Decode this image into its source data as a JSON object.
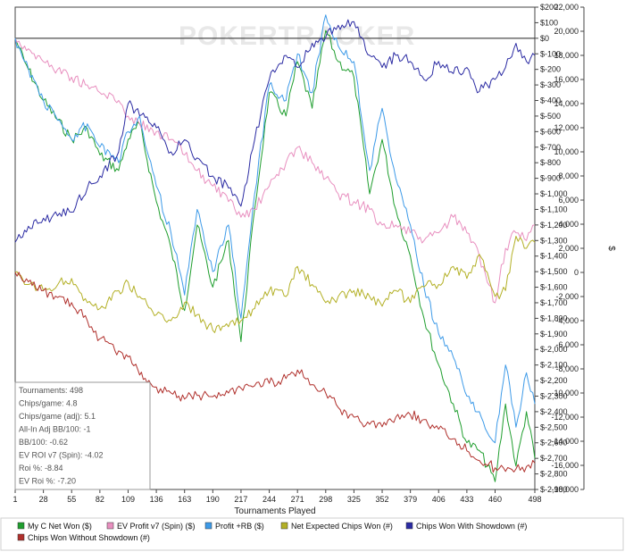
{
  "watermark": "POKERTRACKER",
  "chart_data": {
    "type": "line",
    "xlabel": "Tournaments Played",
    "ylabel_right": "$",
    "x_ticks": [
      1,
      28,
      55,
      82,
      109,
      136,
      163,
      190,
      217,
      244,
      271,
      298,
      325,
      352,
      379,
      406,
      433,
      460,
      498
    ],
    "x_range": [
      1,
      498
    ],
    "y_left": {
      "range": [
        -2900,
        200
      ],
      "ticks": [
        200,
        100,
        0,
        -100,
        -200,
        -300,
        -400,
        -500,
        -600,
        -700,
        -800,
        -900,
        -1000,
        -1100,
        -1200,
        -1300,
        -1400,
        -1500,
        -1600,
        -1700,
        -1800,
        -1900,
        -2000,
        -2100,
        -2200,
        -2300,
        -2400,
        -2500,
        -2600,
        -2700,
        -2800,
        -2900
      ],
      "tick_labels": [
        "$200",
        "$100",
        "$0",
        "$-100",
        "$-200",
        "$-300",
        "$-400",
        "$-500",
        "$-600",
        "$-700",
        "$-800",
        "$-900",
        "$-1,000",
        "$-1,100",
        "$-1,200",
        "$-1,300",
        "$-1,400",
        "$-1,500",
        "$-1,600",
        "$-1,700",
        "$-1,800",
        "$-1,900",
        "$-2,000",
        "$-2,100",
        "$-2,200",
        "$-2,300",
        "$-2,400",
        "$-2,500",
        "$-2,600",
        "$-2,700",
        "$-2,800",
        "$-2,900"
      ]
    },
    "y_right": {
      "range": [
        -18000,
        22000
      ],
      "ticks": [
        22000,
        20000,
        18000,
        16000,
        14000,
        12000,
        10000,
        8000,
        6000,
        4000,
        2000,
        0,
        -2000,
        -4000,
        -6000,
        -8000,
        -10000,
        -12000,
        -14000,
        -16000,
        -18000
      ],
      "tick_labels": [
        "22,000",
        "20,000",
        "18,000",
        "16,000",
        "14,000",
        "12,000",
        "10,000",
        "8,000",
        "6,000",
        "4,000",
        "2,000",
        "0",
        "-2,000",
        "-4,000",
        "-6,000",
        "-8,000",
        "-10,000",
        "-12,000",
        "-14,000",
        "-16,000",
        "-18,000"
      ]
    },
    "grid": false,
    "legend_position": "bottom",
    "series": [
      {
        "name": "My C Net Won ($)",
        "axis": "left",
        "color": "#1f9e2e",
        "x": [
          1,
          10,
          28,
          55,
          70,
          82,
          100,
          109,
          120,
          136,
          150,
          163,
          175,
          190,
          205,
          217,
          230,
          244,
          260,
          271,
          285,
          298,
          310,
          325,
          340,
          352,
          365,
          379,
          392,
          406,
          420,
          433,
          445,
          460,
          470,
          480,
          490,
          498
        ],
        "y": [
          0,
          -150,
          -400,
          -650,
          -580,
          -750,
          -850,
          -650,
          -550,
          -1050,
          -1350,
          -1750,
          -1200,
          -1600,
          -1300,
          -1950,
          -1100,
          -350,
          -500,
          -150,
          -450,
          50,
          -150,
          -250,
          -1000,
          -650,
          -1100,
          -1400,
          -1800,
          -2100,
          -2350,
          -2600,
          -2650,
          -2850,
          -2350,
          -2750,
          -2400,
          -2700
        ]
      },
      {
        "name": "EV Profit v7 (Spin) ($)",
        "axis": "left",
        "color": "#e88fbf",
        "x": [
          1,
          10,
          28,
          55,
          70,
          82,
          100,
          109,
          120,
          136,
          150,
          163,
          175,
          190,
          205,
          217,
          230,
          244,
          260,
          271,
          285,
          298,
          310,
          325,
          340,
          352,
          365,
          379,
          392,
          406,
          420,
          433,
          445,
          460,
          470,
          480,
          490,
          498
        ],
        "y": [
          0,
          -50,
          -150,
          -250,
          -300,
          -350,
          -400,
          -500,
          -550,
          -600,
          -650,
          -750,
          -850,
          -950,
          -1050,
          -1150,
          -1100,
          -950,
          -800,
          -700,
          -800,
          -900,
          -1000,
          -1050,
          -1100,
          -1200,
          -1200,
          -1250,
          -1300,
          -1250,
          -1150,
          -1250,
          -1400,
          -1700,
          -1350,
          -1250,
          -1300,
          -1200
        ]
      },
      {
        "name": "Profit +RB ($)",
        "axis": "left",
        "color": "#3d9ae8",
        "x": [
          1,
          10,
          28,
          55,
          70,
          82,
          100,
          109,
          120,
          136,
          150,
          163,
          175,
          190,
          205,
          217,
          230,
          244,
          260,
          271,
          285,
          298,
          310,
          325,
          340,
          352,
          365,
          379,
          392,
          406,
          420,
          433,
          445,
          460,
          470,
          480,
          490,
          498
        ],
        "y": [
          0,
          -150,
          -400,
          -650,
          -550,
          -700,
          -800,
          -600,
          -500,
          -950,
          -1250,
          -1650,
          -1100,
          -1500,
          -1200,
          -1800,
          -1000,
          -300,
          -400,
          -100,
          -350,
          150,
          -50,
          -150,
          -850,
          -450,
          -900,
          -1200,
          -1600,
          -1900,
          -2050,
          -2300,
          -2400,
          -2600,
          -2100,
          -2500,
          -2150,
          -2350
        ]
      },
      {
        "name": "Net Expected Chips Won (#)",
        "axis": "right",
        "color": "#b3b026",
        "x": [
          1,
          10,
          28,
          55,
          70,
          82,
          100,
          109,
          120,
          136,
          150,
          163,
          175,
          190,
          205,
          217,
          230,
          244,
          260,
          271,
          285,
          298,
          310,
          325,
          340,
          352,
          365,
          379,
          392,
          406,
          420,
          433,
          445,
          460,
          470,
          480,
          490,
          498
        ],
        "y": [
          0,
          -1000,
          -1500,
          -500,
          -2500,
          -3000,
          -1500,
          -800,
          -2000,
          -3500,
          -4000,
          -2500,
          -3500,
          -4800,
          -4500,
          -4000,
          -3000,
          -1500,
          -2000,
          500,
          -1000,
          -2500,
          -2000,
          -1500,
          -2000,
          -2800,
          -1500,
          -2500,
          -1200,
          -1000,
          500,
          -500,
          1500,
          -2000,
          -1500,
          3000,
          2000,
          2500
        ]
      },
      {
        "name": "Chips Won With Showdown (#)",
        "axis": "right",
        "color": "#2b2ba3",
        "x": [
          1,
          10,
          28,
          55,
          70,
          82,
          100,
          109,
          120,
          136,
          150,
          163,
          175,
          190,
          205,
          217,
          230,
          244,
          260,
          271,
          285,
          298,
          310,
          325,
          340,
          352,
          365,
          379,
          392,
          406,
          420,
          433,
          445,
          460,
          470,
          480,
          490,
          498
        ],
        "y": [
          2500,
          3500,
          4500,
          5000,
          7000,
          8000,
          10000,
          14000,
          13000,
          12000,
          10000,
          11000,
          9500,
          8000,
          7000,
          5500,
          11000,
          16000,
          18000,
          17000,
          19000,
          19500,
          20500,
          20800,
          18000,
          17000,
          18000,
          17500,
          16000,
          17500,
          16500,
          17000,
          15000,
          16000,
          17000,
          19000,
          17500,
          18000
        ]
      },
      {
        "name": "Chips Won Without Showdown (#)",
        "axis": "right",
        "color": "#b0302c",
        "x": [
          1,
          10,
          28,
          55,
          70,
          82,
          100,
          109,
          120,
          136,
          150,
          163,
          175,
          190,
          205,
          217,
          230,
          244,
          260,
          271,
          285,
          298,
          310,
          325,
          340,
          352,
          365,
          379,
          392,
          406,
          420,
          433,
          445,
          460,
          470,
          480,
          490,
          498
        ],
        "y": [
          0,
          -800,
          -1500,
          -2500,
          -4000,
          -5500,
          -6500,
          -7000,
          -8500,
          -9500,
          -10000,
          -10500,
          -10200,
          -10300,
          -10000,
          -9600,
          -9400,
          -9200,
          -8800,
          -8100,
          -9300,
          -10000,
          -11200,
          -12000,
          -12600,
          -12800,
          -12000,
          -11800,
          -12200,
          -13000,
          -13800,
          -14800,
          -15600,
          -16200,
          -16500,
          -16300,
          -16100,
          -15800
        ]
      }
    ]
  },
  "stats": {
    "lines": [
      "Tournaments: 498",
      "Chips/game: 4.8",
      "Chips/game (adj): 5.1",
      "All-In Adj BB/100: -1",
      "BB/100: -0.62",
      "EV ROI v7 (Spin): -4.02",
      "Roi %: -8.84",
      "EV Roi %: -7.20"
    ]
  }
}
